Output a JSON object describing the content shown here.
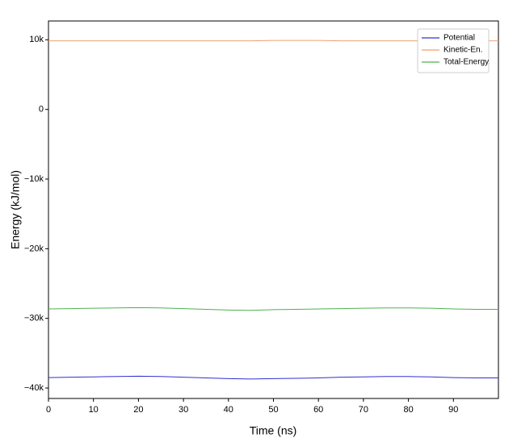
{
  "chart_data": {
    "type": "line",
    "x_label": "Time (ns)",
    "y_label": "Energy (kJ/mol)",
    "x": [
      0,
      5,
      10,
      15,
      20,
      25,
      30,
      35,
      40,
      45,
      50,
      55,
      60,
      65,
      70,
      75,
      80,
      85,
      90,
      95,
      100
    ],
    "series": [
      {
        "name": "Potential",
        "color": "#3030d0",
        "values": [
          -38500,
          -38450,
          -38400,
          -38350,
          -38300,
          -38350,
          -38450,
          -38550,
          -38650,
          -38700,
          -38650,
          -38600,
          -38550,
          -38450,
          -38400,
          -38350,
          -38350,
          -38400,
          -38500,
          -38550,
          -38550
        ]
      },
      {
        "name": "Kinetic-En.",
        "color": "#f0a070",
        "values": [
          9850,
          9850,
          9850,
          9850,
          9850,
          9850,
          9850,
          9850,
          9850,
          9850,
          9900,
          9900,
          9900,
          9850,
          9850,
          9850,
          9850,
          9850,
          9850,
          9850,
          9850
        ]
      },
      {
        "name": "Total-Energy",
        "color": "#50b050",
        "values": [
          -28650,
          -28600,
          -28550,
          -28500,
          -28450,
          -28500,
          -28600,
          -28700,
          -28800,
          -28850,
          -28750,
          -28700,
          -28650,
          -28600,
          -28550,
          -28500,
          -28500,
          -28550,
          -28650,
          -28700,
          -28700
        ]
      }
    ],
    "xlim": [
      0,
      100
    ],
    "xticks": [
      0,
      10,
      20,
      30,
      40,
      50,
      60,
      70,
      80,
      90
    ],
    "ylim": [
      -41500,
      12700
    ],
    "yticks": [
      {
        "value": -40000,
        "label": "−40k"
      },
      {
        "value": -30000,
        "label": "−30k"
      },
      {
        "value": -20000,
        "label": "−20k"
      },
      {
        "value": -10000,
        "label": "−10k"
      },
      0,
      {
        "value": 10000,
        "label": "10k"
      }
    ],
    "legend": "upper right",
    "grid": false
  }
}
